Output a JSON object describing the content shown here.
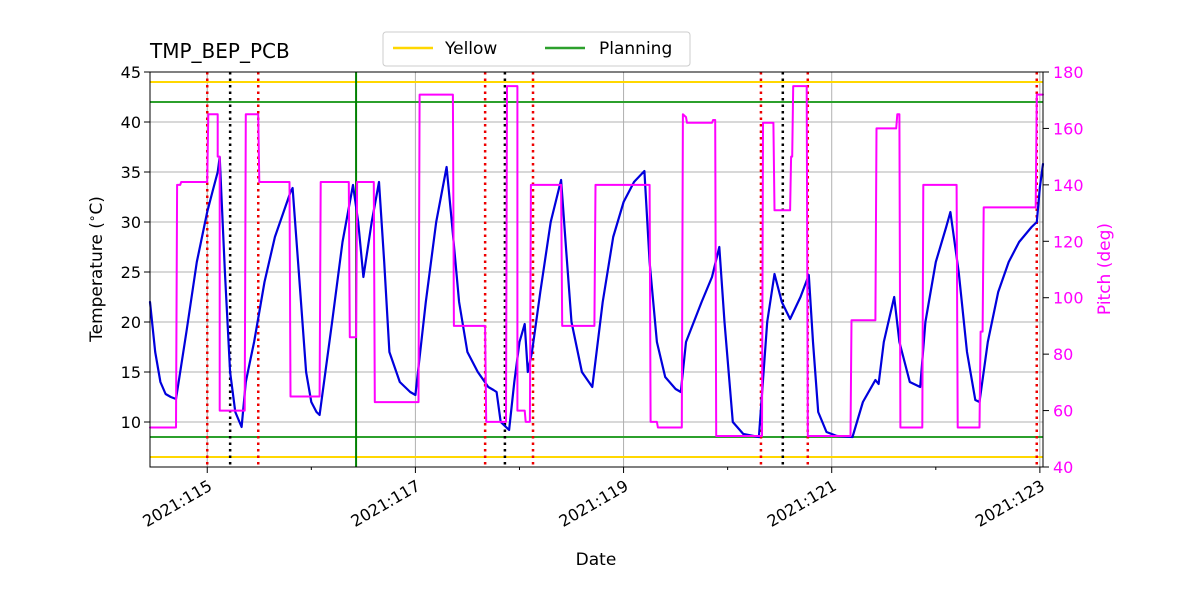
{
  "chart_data": {
    "type": "line",
    "title": "TMP_BEP_PCB",
    "xlabel": "Date",
    "ylabel": "Temperature ($^\\circ$C)",
    "ylabel_right": "Pitch (deg)",
    "xlim": [
      114.45,
      123.03
    ],
    "ylim": [
      5.5,
      45
    ],
    "ylim_right": [
      40,
      180
    ],
    "grid": true,
    "legend_position": "top-center",
    "x_ticks": [
      {
        "value": 115,
        "label": "2021:115"
      },
      {
        "value": 117,
        "label": "2021:117"
      },
      {
        "value": 119,
        "label": "2021:119"
      },
      {
        "value": 121,
        "label": "2021:121"
      },
      {
        "value": 123,
        "label": "2021:123"
      }
    ],
    "y_ticks": [
      {
        "value": 10,
        "label": "10"
      },
      {
        "value": 15,
        "label": "15"
      },
      {
        "value": 20,
        "label": "20"
      },
      {
        "value": 25,
        "label": "25"
      },
      {
        "value": 30,
        "label": "30"
      },
      {
        "value": 35,
        "label": "35"
      },
      {
        "value": 40,
        "label": "40"
      },
      {
        "value": 45,
        "label": "45"
      }
    ],
    "y_ticks_right": [
      {
        "value": 40,
        "label": "40"
      },
      {
        "value": 60,
        "label": "60"
      },
      {
        "value": 80,
        "label": "80"
      },
      {
        "value": 100,
        "label": "100"
      },
      {
        "value": 120,
        "label": "120"
      },
      {
        "value": 140,
        "label": "140"
      },
      {
        "value": 160,
        "label": "160"
      },
      {
        "value": 180,
        "label": "180"
      }
    ],
    "legend": [
      {
        "label": "Yellow",
        "color": "#ffd700"
      },
      {
        "label": "Planning",
        "color": "#2ca02c"
      }
    ],
    "limit_lines": [
      {
        "name": "Yellow",
        "value": 44,
        "color": "#ffd700"
      },
      {
        "name": "Yellow",
        "value": 6.5,
        "color": "#ffd700"
      },
      {
        "name": "Planning",
        "value": 42,
        "color": "#2ca02c"
      },
      {
        "name": "Planning",
        "value": 8.5,
        "color": "#2ca02c"
      }
    ],
    "vertical_lines": {
      "green_solid": [
        116.43
      ],
      "black_dotted": [
        115.22,
        117.86,
        120.53
      ],
      "red_dotted": [
        115.0,
        115.49,
        117.67,
        118.13,
        120.32,
        120.77,
        122.97
      ]
    },
    "series": [
      {
        "axis": "left",
        "color": "#0000dd",
        "points": [
          [
            114.45,
            22
          ],
          [
            114.5,
            17
          ],
          [
            114.55,
            14
          ],
          [
            114.6,
            12.8
          ],
          [
            114.65,
            12.5
          ],
          [
            114.7,
            12.3
          ],
          [
            114.8,
            19
          ],
          [
            114.9,
            26
          ],
          [
            115.0,
            31
          ],
          [
            115.05,
            33
          ],
          [
            115.1,
            35
          ],
          [
            115.12,
            36.5
          ],
          [
            115.17,
            25
          ],
          [
            115.22,
            15
          ],
          [
            115.27,
            11
          ],
          [
            115.33,
            9.5
          ],
          [
            115.37,
            14
          ],
          [
            115.41,
            16
          ],
          [
            115.45,
            18
          ],
          [
            115.55,
            24
          ],
          [
            115.65,
            28.5
          ],
          [
            115.75,
            31.5
          ],
          [
            115.8,
            33
          ],
          [
            115.82,
            33.4
          ],
          [
            115.88,
            25
          ],
          [
            115.95,
            15
          ],
          [
            116.0,
            12
          ],
          [
            116.05,
            11
          ],
          [
            116.08,
            10.7
          ],
          [
            116.2,
            20
          ],
          [
            116.3,
            28
          ],
          [
            116.4,
            33.7
          ],
          [
            116.45,
            30
          ],
          [
            116.5,
            24.5
          ],
          [
            116.58,
            30
          ],
          [
            116.65,
            34
          ],
          [
            116.7,
            26
          ],
          [
            116.75,
            17
          ],
          [
            116.85,
            14
          ],
          [
            116.95,
            13
          ],
          [
            117.0,
            12.7
          ],
          [
            117.1,
            22
          ],
          [
            117.2,
            30
          ],
          [
            117.3,
            35.5
          ],
          [
            117.35,
            30
          ],
          [
            117.42,
            22
          ],
          [
            117.5,
            17
          ],
          [
            117.6,
            15
          ],
          [
            117.7,
            13.5
          ],
          [
            117.75,
            13.2
          ],
          [
            117.78,
            13
          ],
          [
            117.82,
            10
          ],
          [
            117.9,
            9.2
          ],
          [
            117.95,
            14
          ],
          [
            118.0,
            18
          ],
          [
            118.05,
            19.8
          ],
          [
            118.08,
            15
          ],
          [
            118.12,
            17
          ],
          [
            118.2,
            23
          ],
          [
            118.3,
            30
          ],
          [
            118.4,
            34.2
          ],
          [
            118.45,
            27
          ],
          [
            118.5,
            20
          ],
          [
            118.6,
            15
          ],
          [
            118.7,
            13.5
          ],
          [
            118.8,
            22
          ],
          [
            118.9,
            28.5
          ],
          [
            119.0,
            32
          ],
          [
            119.1,
            34
          ],
          [
            119.2,
            35.1
          ],
          [
            119.25,
            26
          ],
          [
            119.32,
            18
          ],
          [
            119.4,
            14.5
          ],
          [
            119.5,
            13.3
          ],
          [
            119.55,
            13
          ],
          [
            119.6,
            18
          ],
          [
            119.75,
            22
          ],
          [
            119.85,
            24.5
          ],
          [
            119.92,
            27.5
          ],
          [
            119.97,
            20
          ],
          [
            120.05,
            10
          ],
          [
            120.15,
            8.8
          ],
          [
            120.3,
            8.5
          ],
          [
            120.38,
            20
          ],
          [
            120.45,
            24.8
          ],
          [
            120.52,
            22
          ],
          [
            120.6,
            20.3
          ],
          [
            120.7,
            22.5
          ],
          [
            120.78,
            24.7
          ],
          [
            120.82,
            18
          ],
          [
            120.87,
            11
          ],
          [
            120.95,
            9
          ],
          [
            121.05,
            8.6
          ],
          [
            121.2,
            8.5
          ],
          [
            121.3,
            12
          ],
          [
            121.42,
            14.2
          ],
          [
            121.45,
            13.8
          ],
          [
            121.5,
            18
          ],
          [
            121.6,
            22.5
          ],
          [
            121.65,
            18
          ],
          [
            121.75,
            14
          ],
          [
            121.85,
            13.5
          ],
          [
            121.9,
            20
          ],
          [
            122.0,
            26
          ],
          [
            122.1,
            29.5
          ],
          [
            122.14,
            31
          ],
          [
            122.22,
            25
          ],
          [
            122.3,
            17
          ],
          [
            122.38,
            12.2
          ],
          [
            122.42,
            12
          ],
          [
            122.5,
            18
          ],
          [
            122.6,
            23
          ],
          [
            122.7,
            26
          ],
          [
            122.8,
            28
          ],
          [
            122.92,
            29.5
          ],
          [
            122.97,
            30
          ],
          [
            123.0,
            33.5
          ],
          [
            123.03,
            35.8
          ]
        ]
      },
      {
        "axis": "right",
        "color": "#ff00ff",
        "points": [
          [
            114.45,
            54
          ],
          [
            114.7,
            54
          ],
          [
            114.71,
            140
          ],
          [
            114.74,
            140
          ],
          [
            114.75,
            141
          ],
          [
            115.0,
            141
          ],
          [
            115.01,
            165
          ],
          [
            115.1,
            165
          ],
          [
            115.1,
            150
          ],
          [
            115.12,
            150
          ],
          [
            115.12,
            60
          ],
          [
            115.36,
            60
          ],
          [
            115.37,
            165
          ],
          [
            115.49,
            165
          ],
          [
            115.5,
            141
          ],
          [
            115.79,
            141
          ],
          [
            115.8,
            65
          ],
          [
            116.08,
            65
          ],
          [
            116.09,
            141
          ],
          [
            116.36,
            141
          ],
          [
            116.37,
            86
          ],
          [
            116.43,
            86
          ],
          [
            116.44,
            141
          ],
          [
            116.6,
            141
          ],
          [
            116.61,
            63
          ],
          [
            117.03,
            63
          ],
          [
            117.04,
            172
          ],
          [
            117.36,
            172
          ],
          [
            117.37,
            90
          ],
          [
            117.67,
            90
          ],
          [
            117.68,
            56
          ],
          [
            117.87,
            56
          ],
          [
            117.88,
            175
          ],
          [
            117.98,
            175
          ],
          [
            117.98,
            60
          ],
          [
            118.05,
            60
          ],
          [
            118.06,
            56
          ],
          [
            118.1,
            56
          ],
          [
            118.11,
            140
          ],
          [
            118.4,
            140
          ],
          [
            118.41,
            90
          ],
          [
            118.72,
            90
          ],
          [
            118.73,
            140
          ],
          [
            119.25,
            140
          ],
          [
            119.26,
            56
          ],
          [
            119.32,
            56
          ],
          [
            119.33,
            54
          ],
          [
            119.56,
            54
          ],
          [
            119.57,
            165
          ],
          [
            119.6,
            164
          ],
          [
            119.61,
            162
          ],
          [
            119.85,
            162
          ],
          [
            119.86,
            163
          ],
          [
            119.88,
            163
          ],
          [
            119.89,
            51
          ],
          [
            120.33,
            51
          ],
          [
            120.34,
            162
          ],
          [
            120.44,
            162
          ],
          [
            120.45,
            131
          ],
          [
            120.6,
            131
          ],
          [
            120.61,
            150
          ],
          [
            120.62,
            150
          ],
          [
            120.63,
            175
          ],
          [
            120.76,
            175
          ],
          [
            120.77,
            51
          ],
          [
            121.18,
            51
          ],
          [
            121.19,
            92
          ],
          [
            121.42,
            92
          ],
          [
            121.43,
            160
          ],
          [
            121.62,
            160
          ],
          [
            121.63,
            165
          ],
          [
            121.65,
            165
          ],
          [
            121.66,
            54
          ],
          [
            121.87,
            54
          ],
          [
            121.88,
            140
          ],
          [
            122.2,
            140
          ],
          [
            122.21,
            54
          ],
          [
            122.42,
            54
          ],
          [
            122.43,
            88
          ],
          [
            122.45,
            88
          ],
          [
            122.46,
            132
          ],
          [
            122.96,
            132
          ],
          [
            122.97,
            172
          ],
          [
            123.03,
            172
          ]
        ]
      }
    ]
  }
}
